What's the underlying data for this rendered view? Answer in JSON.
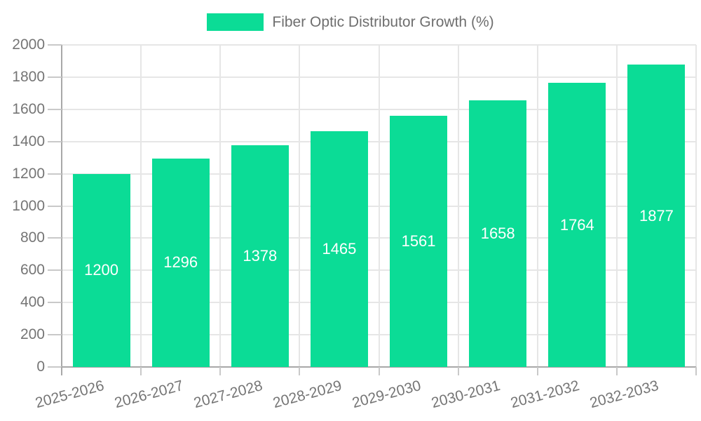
{
  "chart_data": {
    "type": "bar",
    "title": "Fiber Optic Distributor Growth (%)",
    "categories": [
      "2025-2026",
      "2026-2027",
      "2027-2028",
      "2028-2029",
      "2029-2030",
      "2030-2031",
      "2031-2032",
      "2032-2033"
    ],
    "values": [
      1200,
      1296,
      1378,
      1465,
      1561,
      1658,
      1764,
      1877
    ],
    "value_labels": [
      "1200",
      "1296",
      "1378",
      "1465",
      "1561",
      "1658",
      "1764",
      "1877"
    ],
    "xlabel": "",
    "ylabel": "",
    "ylim": [
      0,
      2000
    ],
    "ytick_step": 200,
    "ytick_labels": [
      "0",
      "200",
      "400",
      "600",
      "800",
      "1000",
      "1200",
      "1400",
      "1600",
      "1800",
      "2000"
    ],
    "grid": true,
    "legend_position": "top",
    "x_label_rotation_deg": -15,
    "colors": {
      "bar": "#0bdc96",
      "value_label": "#ffffff",
      "axis_label": "#757575",
      "legend_label": "#6e6e6e",
      "grid_line": "#e6e6e6",
      "axis_line": "#a8a8a8",
      "tick_mark": "#c9c9c9",
      "background": "#ffffff"
    }
  }
}
